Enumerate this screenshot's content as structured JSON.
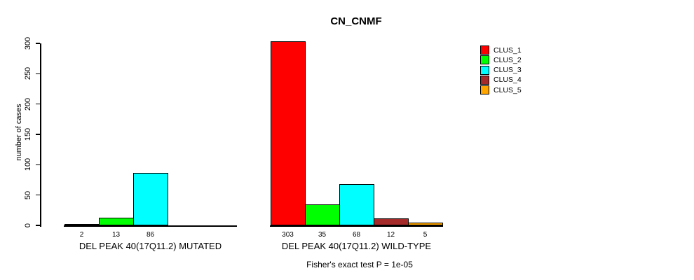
{
  "title": "CN_CNMF",
  "y_axis": {
    "label": "number of cases"
  },
  "footer": "Fisher's exact test P = 1e-05",
  "chart_data": {
    "type": "bar",
    "title": "CN_CNMF",
    "xlabel": "",
    "ylabel": "number of cases",
    "ylim": [
      0,
      300
    ],
    "yticks": [
      0,
      50,
      100,
      150,
      200,
      250,
      300
    ],
    "grid": false,
    "legend_position": "top-right",
    "categories": [
      "DEL PEAK 40(17Q11.2) MUTATED",
      "DEL PEAK 40(17Q11.2) WILD-TYPE"
    ],
    "series": [
      {
        "name": "CLUS_1",
        "color": "#FF0000",
        "values": [
          2,
          303
        ]
      },
      {
        "name": "CLUS_2",
        "color": "#00FF00",
        "values": [
          13,
          35
        ]
      },
      {
        "name": "CLUS_3",
        "color": "#00FFFF",
        "values": [
          86,
          68
        ]
      },
      {
        "name": "CLUS_4",
        "color": "#A52A2A",
        "values": [
          0,
          12
        ]
      },
      {
        "name": "CLUS_5",
        "color": "#FFA500",
        "values": [
          0,
          5
        ]
      }
    ],
    "bar_value_labels_shown_for_nonzero_only": true,
    "annotation": "Fisher's exact test P = 1e-05"
  }
}
